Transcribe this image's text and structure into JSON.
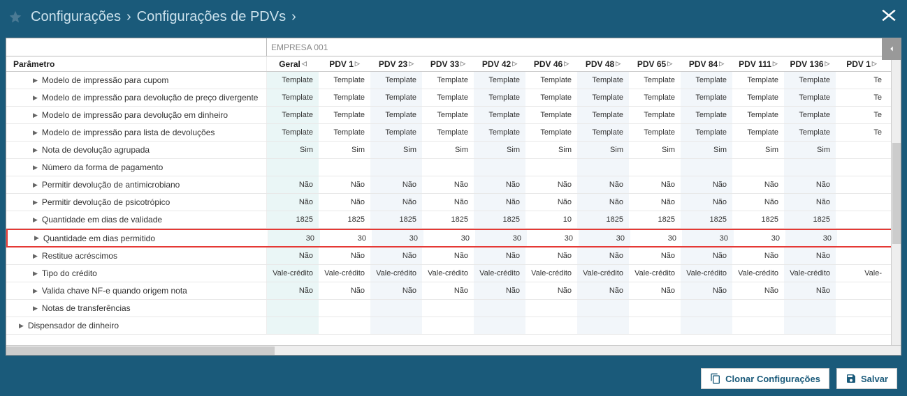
{
  "breadcrumb": {
    "item1": "Configurações",
    "item2": "Configurações de PDVs"
  },
  "filter": {
    "company": "EMPRESA 001"
  },
  "columns": {
    "param_header": "Parâmetro",
    "heads": [
      "Geral",
      "PDV 1",
      "PDV 23",
      "PDV 33",
      "PDV 42",
      "PDV 46",
      "PDV 48",
      "PDV 65",
      "PDV 84",
      "PDV 111",
      "PDV 136",
      "PDV 1"
    ]
  },
  "rows": [
    {
      "label": "Modelo de impressão para cupom",
      "v": [
        "Template",
        "Template",
        "Template",
        "Template",
        "Template",
        "Template",
        "Template",
        "Template",
        "Template",
        "Template",
        "Template",
        "Te"
      ]
    },
    {
      "label": "Modelo de impressão para devolução de preço divergente",
      "v": [
        "Template",
        "Template",
        "Template",
        "Template",
        "Template",
        "Template",
        "Template",
        "Template",
        "Template",
        "Template",
        "Template",
        "Te"
      ]
    },
    {
      "label": "Modelo de impressão para devolução em dinheiro",
      "v": [
        "Template",
        "Template",
        "Template",
        "Template",
        "Template",
        "Template",
        "Template",
        "Template",
        "Template",
        "Template",
        "Template",
        "Te"
      ]
    },
    {
      "label": "Modelo de impressão para lista de devoluções",
      "v": [
        "Template",
        "Template",
        "Template",
        "Template",
        "Template",
        "Template",
        "Template",
        "Template",
        "Template",
        "Template",
        "Template",
        "Te"
      ]
    },
    {
      "label": "Nota de devolução agrupada",
      "v": [
        "Sim",
        "Sim",
        "Sim",
        "Sim",
        "Sim",
        "Sim",
        "Sim",
        "Sim",
        "Sim",
        "Sim",
        "Sim",
        ""
      ]
    },
    {
      "label": "Número da forma de pagamento",
      "v": [
        "",
        "",
        "",
        "",
        "",
        "",
        "",
        "",
        "",
        "",
        "",
        ""
      ]
    },
    {
      "label": "Permitir devolução de antimicrobiano",
      "v": [
        "Não",
        "Não",
        "Não",
        "Não",
        "Não",
        "Não",
        "Não",
        "Não",
        "Não",
        "Não",
        "Não",
        ""
      ]
    },
    {
      "label": "Permitir devolução de psicotrópico",
      "v": [
        "Não",
        "Não",
        "Não",
        "Não",
        "Não",
        "Não",
        "Não",
        "Não",
        "Não",
        "Não",
        "Não",
        ""
      ]
    },
    {
      "label": "Quantidade em dias de validade",
      "v": [
        "1825",
        "1825",
        "1825",
        "1825",
        "1825",
        "10",
        "1825",
        "1825",
        "1825",
        "1825",
        "1825",
        ""
      ]
    },
    {
      "label": "Quantidade em dias permitido",
      "v": [
        "30",
        "30",
        "30",
        "30",
        "30",
        "30",
        "30",
        "30",
        "30",
        "30",
        "30",
        ""
      ],
      "highlight": true
    },
    {
      "label": "Restitue acréscimos",
      "v": [
        "Não",
        "Não",
        "Não",
        "Não",
        "Não",
        "Não",
        "Não",
        "Não",
        "Não",
        "Não",
        "Não",
        ""
      ]
    },
    {
      "label": "Tipo do crédito",
      "v": [
        "Vale-crédito",
        "Vale-crédito",
        "Vale-crédito",
        "Vale-crédito",
        "Vale-crédito",
        "Vale-crédito",
        "Vale-crédito",
        "Vale-crédito",
        "Vale-crédito",
        "Vale-crédito",
        "Vale-crédito",
        "Vale-"
      ]
    },
    {
      "label": "Valida chave NF-e quando origem nota",
      "v": [
        "Não",
        "Não",
        "Não",
        "Não",
        "Não",
        "Não",
        "Não",
        "Não",
        "Não",
        "Não",
        "Não",
        ""
      ]
    },
    {
      "label": "Notas de transferências",
      "v": [
        "",
        "",
        "",
        "",
        "",
        "",
        "",
        "",
        "",
        "",
        "",
        ""
      ]
    },
    {
      "label": "Dispensador de dinheiro",
      "v": [
        "",
        "",
        "",
        "",
        "",
        "",
        "",
        "",
        "",
        "",
        "",
        ""
      ],
      "top": true
    }
  ],
  "buttons": {
    "clone": "Clonar Configurações",
    "save": "Salvar"
  }
}
